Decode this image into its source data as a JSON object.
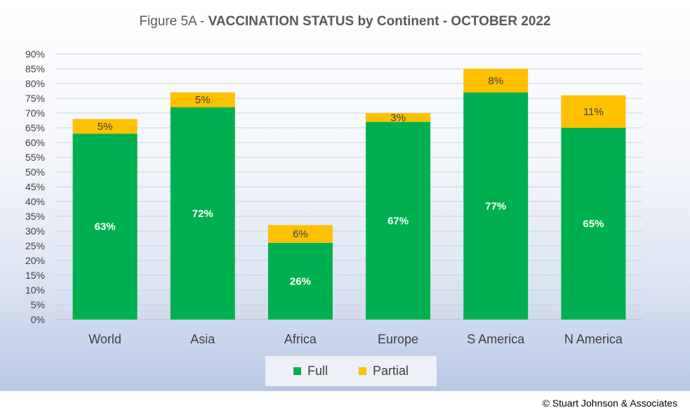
{
  "title_prefix": "Figure 5A - ",
  "title_main": "VACCINATION STATUS by Continent - OCTOBER 2022",
  "copyright": "© Stuart Johnson & Associates",
  "colors": {
    "full": "#00b050",
    "partial": "#ffc000",
    "grid": "#c9d3e6",
    "axis": "#bfbfbf"
  },
  "chart_data": {
    "type": "bar",
    "stacked": true,
    "categories": [
      "World",
      "Asia",
      "Africa",
      "Europe",
      "S America",
      "N America"
    ],
    "series": [
      {
        "name": "Full",
        "values": [
          63,
          72,
          26,
          67,
          77,
          65
        ],
        "labels": [
          "63%",
          "72%",
          "26%",
          "67%",
          "77%",
          "65%"
        ]
      },
      {
        "name": "Partial",
        "values": [
          5,
          5,
          6,
          3,
          8,
          11
        ],
        "labels": [
          "5%",
          "5%",
          "6%",
          "3%",
          "8%",
          "11%"
        ]
      }
    ],
    "ylim": [
      0,
      90
    ],
    "yticks": [
      "0%",
      "5%",
      "10%",
      "15%",
      "20%",
      "25%",
      "30%",
      "35%",
      "40%",
      "45%",
      "50%",
      "55%",
      "60%",
      "65%",
      "70%",
      "75%",
      "80%",
      "85%",
      "90%"
    ],
    "grid": true,
    "legend_position": "bottom"
  }
}
